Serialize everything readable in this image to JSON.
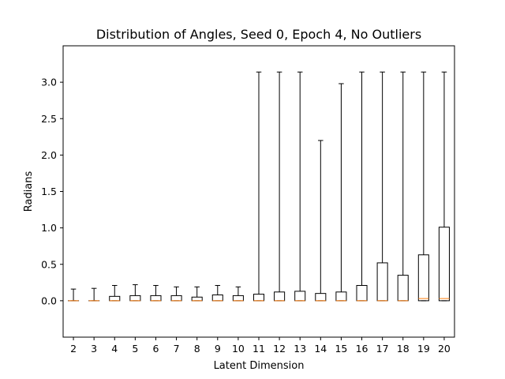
{
  "chart_data": {
    "type": "box",
    "title": "Distribution of Angles, Seed 0, Epoch 4, No Outliers",
    "xlabel": "Latent Dimension",
    "ylabel": "Radians",
    "ylim": [
      -0.5,
      3.5
    ],
    "yticks": [
      "0.0",
      "0.5",
      "1.0",
      "1.5",
      "2.0",
      "2.5",
      "3.0"
    ],
    "grid": false,
    "categories": [
      "2",
      "3",
      "4",
      "5",
      "6",
      "7",
      "8",
      "9",
      "10",
      "11",
      "12",
      "13",
      "14",
      "15",
      "16",
      "17",
      "18",
      "19",
      "20"
    ],
    "boxes": [
      {
        "whisker_low": 0,
        "q1": 0,
        "median": 0,
        "q3": 0,
        "whisker_high": 0.16
      },
      {
        "whisker_low": 0,
        "q1": 0,
        "median": 0,
        "q3": 0,
        "whisker_high": 0.17
      },
      {
        "whisker_low": 0,
        "q1": 0,
        "median": 0,
        "q3": 0.06,
        "whisker_high": 0.21
      },
      {
        "whisker_low": 0,
        "q1": 0,
        "median": 0,
        "q3": 0.07,
        "whisker_high": 0.22
      },
      {
        "whisker_low": 0,
        "q1": 0,
        "median": 0,
        "q3": 0.07,
        "whisker_high": 0.21
      },
      {
        "whisker_low": 0,
        "q1": 0,
        "median": 0,
        "q3": 0.07,
        "whisker_high": 0.19
      },
      {
        "whisker_low": 0,
        "q1": 0,
        "median": 0,
        "q3": 0.05,
        "whisker_high": 0.19
      },
      {
        "whisker_low": 0,
        "q1": 0,
        "median": 0,
        "q3": 0.08,
        "whisker_high": 0.21
      },
      {
        "whisker_low": 0,
        "q1": 0,
        "median": 0,
        "q3": 0.07,
        "whisker_high": 0.19
      },
      {
        "whisker_low": 0,
        "q1": 0,
        "median": 0,
        "q3": 0.09,
        "whisker_high": 3.14
      },
      {
        "whisker_low": 0,
        "q1": 0,
        "median": 0,
        "q3": 0.12,
        "whisker_high": 3.14
      },
      {
        "whisker_low": 0,
        "q1": 0,
        "median": 0,
        "q3": 0.13,
        "whisker_high": 3.14
      },
      {
        "whisker_low": 0,
        "q1": 0,
        "median": 0,
        "q3": 0.1,
        "whisker_high": 2.2
      },
      {
        "whisker_low": 0,
        "q1": 0,
        "median": 0,
        "q3": 0.12,
        "whisker_high": 2.98
      },
      {
        "whisker_low": 0,
        "q1": 0,
        "median": 0,
        "q3": 0.21,
        "whisker_high": 3.14
      },
      {
        "whisker_low": 0,
        "q1": 0,
        "median": 0,
        "q3": 0.52,
        "whisker_high": 3.14
      },
      {
        "whisker_low": 0,
        "q1": 0,
        "median": 0,
        "q3": 0.35,
        "whisker_high": 3.14
      },
      {
        "whisker_low": 0,
        "q1": 0,
        "median": 0.03,
        "q3": 0.63,
        "whisker_high": 3.14
      },
      {
        "whisker_low": 0,
        "q1": 0,
        "median": 0.03,
        "q3": 1.01,
        "whisker_high": 3.14
      }
    ],
    "colors": {
      "box": "#000000",
      "median": "#ff7f0e",
      "background": "#ffffff"
    }
  }
}
